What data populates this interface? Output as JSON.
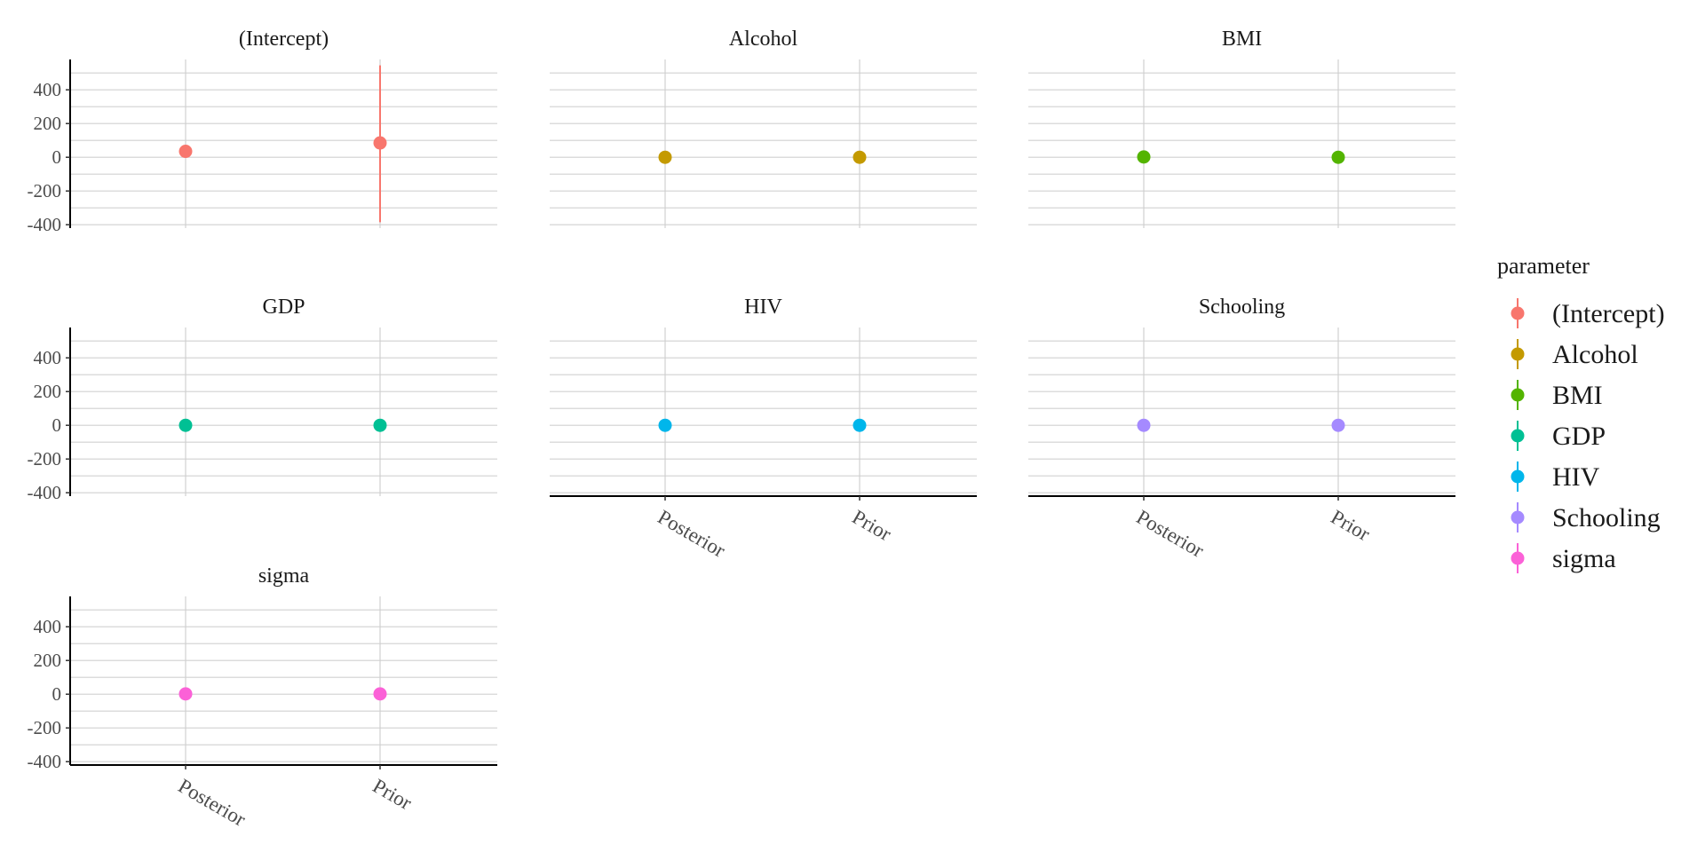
{
  "chart_data": {
    "type": "pointrange",
    "legend": {
      "title": "parameter",
      "position": "right"
    },
    "x_categories": [
      "Posterior",
      "Prior"
    ],
    "y_ticks": [
      400,
      200,
      0,
      -200,
      -400
    ],
    "ylim": [
      -420,
      580
    ],
    "grid": true,
    "colors": {
      "(Intercept)": "#F8766D",
      "Alcohol": "#C49A00",
      "BMI": "#53B400",
      "GDP": "#00C094",
      "HIV": "#00B6EB",
      "Schooling": "#A58AFF",
      "sigma": "#FB61D7"
    },
    "panels": [
      {
        "name": "(Intercept)",
        "points": [
          {
            "x": "Posterior",
            "y": 35,
            "ymin": 30,
            "ymax": 40
          },
          {
            "x": "Prior",
            "y": 85,
            "ymin": -385,
            "ymax": 545
          }
        ]
      },
      {
        "name": "Alcohol",
        "points": [
          {
            "x": "Posterior",
            "y": 0,
            "ymin": -3,
            "ymax": 3
          },
          {
            "x": "Prior",
            "y": 0,
            "ymin": -3,
            "ymax": 3
          }
        ]
      },
      {
        "name": "BMI",
        "points": [
          {
            "x": "Posterior",
            "y": 2,
            "ymin": -1,
            "ymax": 5
          },
          {
            "x": "Prior",
            "y": 0,
            "ymin": -3,
            "ymax": 3
          }
        ]
      },
      {
        "name": "GDP",
        "points": [
          {
            "x": "Posterior",
            "y": 0,
            "ymin": -2,
            "ymax": 2
          },
          {
            "x": "Prior",
            "y": 0,
            "ymin": -2,
            "ymax": 2
          }
        ]
      },
      {
        "name": "HIV",
        "points": [
          {
            "x": "Posterior",
            "y": 0,
            "ymin": -2,
            "ymax": 2
          },
          {
            "x": "Prior",
            "y": 0,
            "ymin": -2,
            "ymax": 2
          }
        ]
      },
      {
        "name": "Schooling",
        "points": [
          {
            "x": "Posterior",
            "y": 0,
            "ymin": -2,
            "ymax": 2
          },
          {
            "x": "Prior",
            "y": 0,
            "ymin": -2,
            "ymax": 2
          }
        ]
      },
      {
        "name": "sigma",
        "points": [
          {
            "x": "Posterior",
            "y": 2,
            "ymin": 0,
            "ymax": 4
          },
          {
            "x": "Prior",
            "y": 2,
            "ymin": 0,
            "ymax": 4
          }
        ]
      }
    ]
  }
}
